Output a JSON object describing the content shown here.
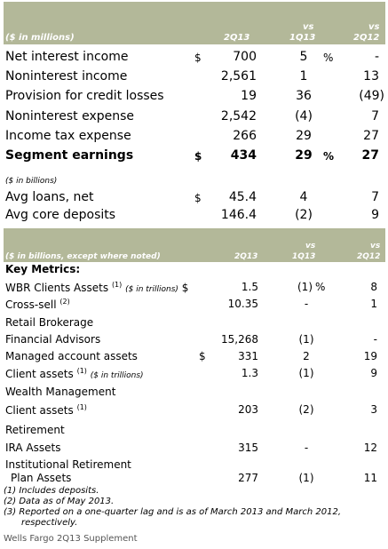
{
  "table1": {
    "header": {
      "unit": "($ in millions)",
      "c1": "2Q13",
      "c2_top": "vs",
      "c2": "1Q13",
      "c3_top": "vs",
      "c3": "2Q12"
    },
    "rows": [
      {
        "label": "Net interest income",
        "dollar": "$",
        "v1": "700",
        "v2": "5",
        "pct": "%",
        "v3": "-"
      },
      {
        "label": "Noninterest income",
        "dollar": "",
        "v1": "2,561",
        "v2": "1",
        "pct": "",
        "v3": "13"
      },
      {
        "label": "Provision for credit losses",
        "dollar": "",
        "v1": "19",
        "v2": "36",
        "pct": "",
        "v3": "(49)"
      },
      {
        "label": "Noninterest expense",
        "dollar": "",
        "v1": "2,542",
        "v2": "(4)",
        "pct": "",
        "v3": "7"
      },
      {
        "label": "Income tax expense",
        "dollar": "",
        "v1": "266",
        "v2": "29",
        "pct": "",
        "v3": "27"
      },
      {
        "label": "Segment earnings",
        "dollar": "$",
        "v1": "434",
        "v2": "29",
        "pct": "%",
        "v3": "27"
      }
    ],
    "unit2": "($ in billions)",
    "rows2": [
      {
        "label": "Avg loans, net",
        "dollar": "$",
        "v1": "45.4",
        "v2": "4",
        "v3": "7"
      },
      {
        "label": "Avg core deposits",
        "dollar": "",
        "v1": "146.4",
        "v2": "(2)",
        "v3": "9"
      }
    ]
  },
  "table2": {
    "header": {
      "unit": "($ in billions, except where noted)",
      "c1": "2Q13",
      "c2_top": "vs",
      "c2": "1Q13",
      "c3_top": "vs",
      "c3": "2Q12"
    },
    "key_metrics": "Key Metrics:",
    "wbr": {
      "label": "WBR Clients Assets",
      "sup": "(1)",
      "note": "($ in trillions)",
      "dollar": "$",
      "v1": "1.5",
      "v2": "(1)",
      "pct": "%",
      "v3": "8"
    },
    "crosssell": {
      "label": "Cross-sell",
      "sup": "(2)",
      "v1": "10.35",
      "v2": "-",
      "v3": "1"
    },
    "retail_title": "Retail Brokerage",
    "fa": {
      "label": "Financial Advisors",
      "v1": "15,268",
      "v2": "(1)",
      "v3": "-"
    },
    "maa": {
      "label": "Managed account assets",
      "dollar": "$",
      "v1": "331",
      "v2": "2",
      "v3": "19"
    },
    "ca": {
      "label": "Client assets",
      "sup": "(1)",
      "note": "($ in trillions)",
      "v1": "1.3",
      "v2": "(1)",
      "v3": "9"
    },
    "wm_title": "Wealth Management",
    "wmca": {
      "label": "Client assets",
      "sup": "(1)",
      "v1": "203",
      "v2": "(2)",
      "v3": "3"
    },
    "ret_title": "Retirement",
    "ira": {
      "label": "IRA Assets",
      "v1": "315",
      "v2": "-",
      "v3": "12"
    },
    "ira_inst": {
      "label1": "Institutional Retirement",
      "label2": "Plan Assets",
      "v1": "277",
      "v2": "(1)",
      "v3": "11"
    }
  },
  "footnotes": [
    "(1)  Includes deposits.",
    "(2)  Data as of May 2013.",
    "(3)  Reported on a one-quarter lag and is as of March 2013 and March 2012,",
    "respectively."
  ],
  "footer": "Wells Fargo 2Q13 Supplement"
}
